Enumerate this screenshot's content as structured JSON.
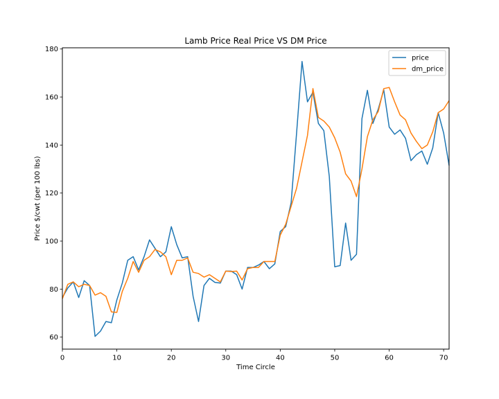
{
  "chart_data": {
    "type": "line",
    "title": "Lamb Price Real Price VS DM Price",
    "xlabel": "Time Circle",
    "ylabel": "Price $/cwt (per 100 lbs)",
    "xlim": [
      0,
      71
    ],
    "ylim": [
      55,
      180.5
    ],
    "xticks": [
      0,
      10,
      20,
      30,
      40,
      50,
      60,
      70
    ],
    "yticks": [
      60,
      80,
      100,
      120,
      140,
      160,
      180
    ],
    "grid": false,
    "legend_position": "top-right",
    "x": [
      0,
      1,
      2,
      3,
      4,
      5,
      6,
      7,
      8,
      9,
      10,
      11,
      12,
      13,
      14,
      15,
      16,
      17,
      18,
      19,
      20,
      21,
      22,
      23,
      24,
      25,
      26,
      27,
      28,
      29,
      30,
      31,
      32,
      33,
      34,
      35,
      36,
      37,
      38,
      39,
      40,
      41,
      42,
      43,
      44,
      45,
      46,
      47,
      48,
      49,
      50,
      51,
      52,
      53,
      54,
      55,
      56,
      57,
      58,
      59,
      60,
      61,
      62,
      63,
      64,
      65,
      66,
      67,
      68,
      69,
      70,
      71
    ],
    "series": [
      {
        "name": "price",
        "color": "#1f77b4",
        "values": [
          76.5,
          80.5,
          83.0,
          76.5,
          83.5,
          81.5,
          60.3,
          62.5,
          66.5,
          66.0,
          75.5,
          82.5,
          92.0,
          93.5,
          88.0,
          93.5,
          100.5,
          97.0,
          93.5,
          95.5,
          106.0,
          98.5,
          93.0,
          93.5,
          77.0,
          66.5,
          81.5,
          84.5,
          82.8,
          82.5,
          87.5,
          87.5,
          86.0,
          80.0,
          89.0,
          89.0,
          90.0,
          91.5,
          88.5,
          90.5,
          104.0,
          106.0,
          116.0,
          145.0,
          174.8,
          158.0,
          162.0,
          149.0,
          146.0,
          127.0,
          89.3,
          89.8,
          107.5,
          92.0,
          94.5,
          151.0,
          162.8,
          149.0,
          155.0,
          163.0,
          147.5,
          144.5,
          146.3,
          142.8,
          133.5,
          136.0,
          137.5,
          132.0,
          138.8,
          153.5,
          145.0,
          131.5
        ]
      },
      {
        "name": "dm_price",
        "color": "#ff7f0e",
        "values": [
          76.0,
          82.0,
          83.0,
          81.0,
          82.0,
          81.5,
          77.5,
          78.5,
          77.0,
          70.5,
          70.3,
          79.0,
          84.5,
          91.5,
          87.0,
          92.0,
          93.5,
          96.5,
          95.5,
          93.5,
          86.0,
          92.0,
          92.0,
          93.0,
          87.0,
          86.5,
          85.0,
          86.0,
          84.5,
          83.0,
          87.5,
          87.3,
          87.5,
          83.8,
          88.5,
          89.0,
          89.0,
          91.5,
          91.5,
          91.5,
          102.5,
          107.0,
          114.5,
          122.0,
          133.0,
          144.0,
          163.5,
          151.5,
          150.0,
          147.5,
          143.0,
          137.0,
          128.0,
          125.0,
          118.5,
          130.0,
          143.5,
          150.5,
          154.0,
          163.5,
          164.0,
          158.0,
          152.5,
          150.5,
          145.0,
          141.5,
          138.5,
          140.0,
          145.5,
          153.5,
          155.0,
          158.5
        ]
      }
    ]
  }
}
